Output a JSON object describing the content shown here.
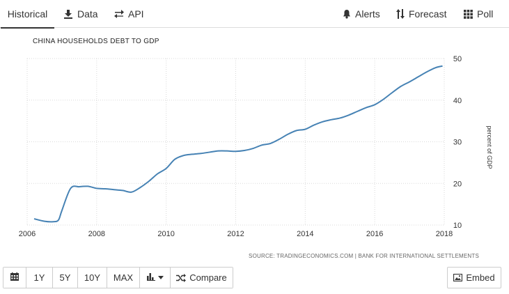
{
  "tabs": {
    "historical": "Historical",
    "data": "Data",
    "api": "API",
    "alerts": "Alerts",
    "forecast": "Forecast",
    "poll": "Poll"
  },
  "icons": {
    "data": "download-icon",
    "api": "exchange-arrows-icon",
    "alerts": "bell-icon",
    "forecast": "sort-arrows-icon",
    "poll": "grid-icon",
    "calendar": "calendar-icon",
    "chart_type": "bar-chart-icon",
    "compare": "shuffle-icon",
    "embed": "image-icon"
  },
  "source": "SOURCE: TRADINGECONOMICS.COM  |  BANK FOR INTERNATIONAL SETTLEMENTS",
  "toolbar": {
    "range_1y": "1Y",
    "range_5y": "5Y",
    "range_10y": "10Y",
    "range_max": "MAX",
    "compare": "Compare",
    "embed": "Embed"
  },
  "colors": {
    "line": "#4682b4",
    "grid": "#d9d9d9",
    "text": "#333333"
  },
  "chart_data": {
    "type": "line",
    "title": "CHINA HOUSEHOLDS DEBT TO GDP",
    "ylabel": "percent of GDP",
    "xlabel": "",
    "xlim": [
      2006,
      2018
    ],
    "ylim": [
      10,
      50
    ],
    "x_ticks": [
      2006,
      2008,
      2010,
      2012,
      2014,
      2016,
      2018
    ],
    "y_ticks": [
      10,
      20,
      30,
      40,
      50
    ],
    "y_axis_side": "right",
    "grid": true,
    "legend": "none",
    "series": [
      {
        "x": [
          2006.2,
          2006.5,
          2006.75,
          2006.9,
          2007.0,
          2007.25,
          2007.5,
          2007.75,
          2008.0,
          2008.25,
          2008.5,
          2008.75,
          2009.0,
          2009.25,
          2009.5,
          2009.75,
          2010.0,
          2010.25,
          2010.5,
          2010.75,
          2011.0,
          2011.25,
          2011.5,
          2011.75,
          2012.0,
          2012.25,
          2012.5,
          2012.75,
          2013.0,
          2013.25,
          2013.5,
          2013.75,
          2014.0,
          2014.25,
          2014.5,
          2014.75,
          2015.0,
          2015.25,
          2015.5,
          2015.75,
          2016.0,
          2016.25,
          2016.5,
          2016.75,
          2017.0,
          2017.25,
          2017.5,
          2017.75,
          2017.95
        ],
        "values": [
          11.5,
          10.9,
          10.8,
          11.2,
          13.5,
          18.8,
          19.2,
          19.3,
          18.8,
          18.7,
          18.5,
          18.3,
          17.9,
          19.0,
          20.5,
          22.3,
          23.6,
          25.8,
          26.7,
          27.0,
          27.2,
          27.5,
          27.8,
          27.8,
          27.7,
          27.9,
          28.4,
          29.2,
          29.6,
          30.6,
          31.8,
          32.7,
          33.0,
          34.0,
          34.8,
          35.3,
          35.7,
          36.4,
          37.3,
          38.2,
          38.9,
          40.2,
          41.8,
          43.3,
          44.4,
          45.6,
          46.8,
          47.8,
          48.2
        ]
      }
    ]
  }
}
